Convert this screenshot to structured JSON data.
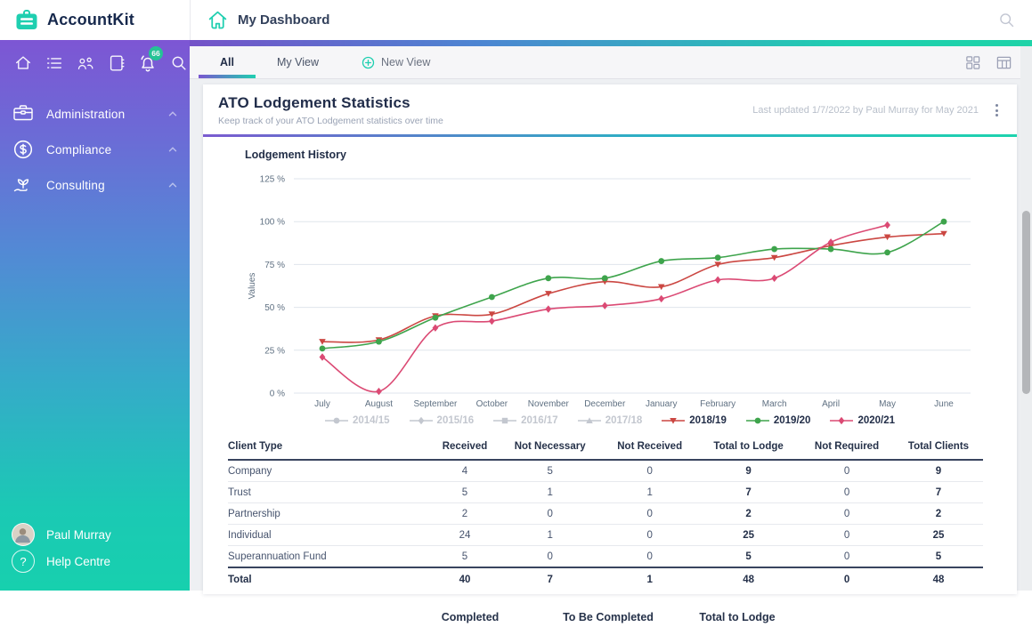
{
  "header": {
    "brand": "AccountKit",
    "page_title": "My Dashboard"
  },
  "sidebar": {
    "notification_count": "66",
    "icon_bar": [
      "home",
      "list",
      "people",
      "contacts",
      "notifications",
      "search"
    ],
    "items": [
      {
        "label": "Administration",
        "icon": "toolbox"
      },
      {
        "label": "Compliance",
        "icon": "dollar-circle"
      },
      {
        "label": "Consulting",
        "icon": "plant-hand"
      }
    ],
    "footer": [
      {
        "label": "Paul Murray",
        "icon": "avatar"
      },
      {
        "label": "Help Centre",
        "icon": "help"
      }
    ]
  },
  "tabs": {
    "items": [
      {
        "label": "All",
        "active": true
      },
      {
        "label": "My View",
        "active": false
      },
      {
        "label": "New View",
        "active": false,
        "icon": "plus-circle"
      }
    ]
  },
  "card": {
    "title": "ATO Lodgement Statistics",
    "subtitle": "Keep track of your ATO Lodgement statistics over time",
    "last_updated": "Last updated 1/7/2022 by Paul Murray for May 2021"
  },
  "chart_data": {
    "type": "line",
    "title": "Lodgement History",
    "ylabel": "Values",
    "ylim": [
      0,
      125
    ],
    "yticks": [
      0,
      25,
      50,
      75,
      100,
      125
    ],
    "ytick_suffix": " %",
    "grid": true,
    "legend_position": "bottom",
    "x": [
      "July",
      "August",
      "September",
      "October",
      "November",
      "December",
      "January",
      "February",
      "March",
      "April",
      "May",
      "June"
    ],
    "series": [
      {
        "name": "2014/15",
        "marker": "circle",
        "color": "#c3c7cf",
        "disabled": true,
        "values": []
      },
      {
        "name": "2015/16",
        "marker": "diamond",
        "color": "#c3c7cf",
        "disabled": true,
        "values": []
      },
      {
        "name": "2016/17",
        "marker": "square",
        "color": "#c3c7cf",
        "disabled": true,
        "values": []
      },
      {
        "name": "2017/18",
        "marker": "triangle-up",
        "color": "#c3c7cf",
        "disabled": true,
        "values": []
      },
      {
        "name": "2018/19",
        "marker": "triangle-down",
        "color": "#cb4742",
        "disabled": false,
        "values": [
          30,
          31,
          45,
          46,
          58,
          65,
          62,
          75,
          79,
          86,
          91,
          93
        ]
      },
      {
        "name": "2019/20",
        "marker": "circle",
        "color": "#3ea44c",
        "disabled": false,
        "values": [
          26,
          30,
          44,
          56,
          67,
          67,
          77,
          79,
          84,
          84,
          82,
          100
        ]
      },
      {
        "name": "2020/21",
        "marker": "diamond",
        "color": "#db4a74",
        "disabled": false,
        "values": [
          21,
          1,
          38,
          42,
          49,
          51,
          55,
          66,
          67,
          88,
          98,
          null
        ]
      }
    ]
  },
  "table": {
    "columns": [
      "Client Type",
      "Received",
      "Not Necessary",
      "Not Received",
      "Total to Lodge",
      "Not Required",
      "Total Clients"
    ],
    "bold_columns": [
      "Total to Lodge",
      "Total Clients"
    ],
    "rows": [
      {
        "label": "Company",
        "values": [
          4,
          5,
          0,
          9,
          0,
          9
        ]
      },
      {
        "label": "Trust",
        "values": [
          5,
          1,
          1,
          7,
          0,
          7
        ]
      },
      {
        "label": "Partnership",
        "values": [
          2,
          0,
          0,
          2,
          0,
          2
        ]
      },
      {
        "label": "Individual",
        "values": [
          24,
          1,
          0,
          25,
          0,
          25
        ]
      },
      {
        "label": "Superannuation Fund",
        "values": [
          5,
          0,
          0,
          5,
          0,
          5
        ]
      },
      {
        "label": "Total",
        "values": [
          40,
          7,
          1,
          48,
          0,
          48
        ],
        "is_total": true
      }
    ]
  },
  "summary_labels": [
    "Completed",
    "To Be Completed",
    "Total to Lodge"
  ],
  "colors": {
    "accent_teal": "#1fcfb0",
    "accent_purple": "#7a56d0",
    "badge_green": "#21c993",
    "series_red": "#cb4742",
    "series_green": "#3ea44c",
    "series_pink": "#db4a74",
    "gridline": "#dfe5ec"
  }
}
